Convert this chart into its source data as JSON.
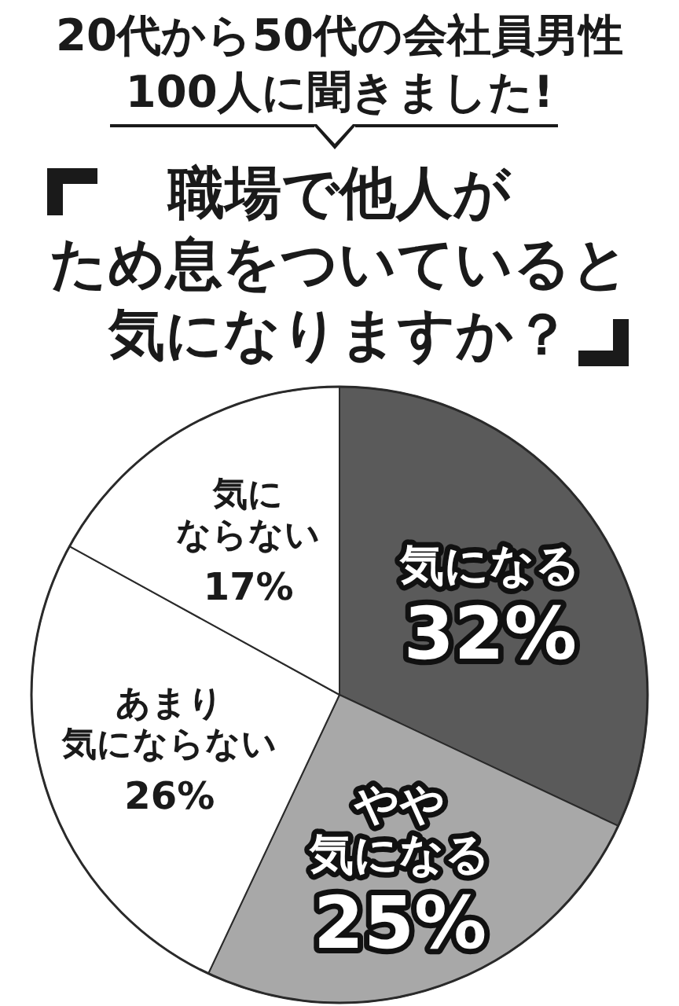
{
  "chart_data": {
    "type": "pie",
    "title": "職場で他人がため息をついていると気になりますか？",
    "subtitle": "20代から50代の会社員男性\n100人に聞きました!",
    "categories": [
      "気になる",
      "やや気になる",
      "あまり気にならない",
      "気にならない"
    ],
    "values": [
      32,
      25,
      26,
      17
    ],
    "value_labels": [
      "32%",
      "25%",
      "26%",
      "17%"
    ],
    "colors": [
      "#5a5a5a",
      "#a8a8a8",
      "#ffffff",
      "#ffffff"
    ]
  }
}
